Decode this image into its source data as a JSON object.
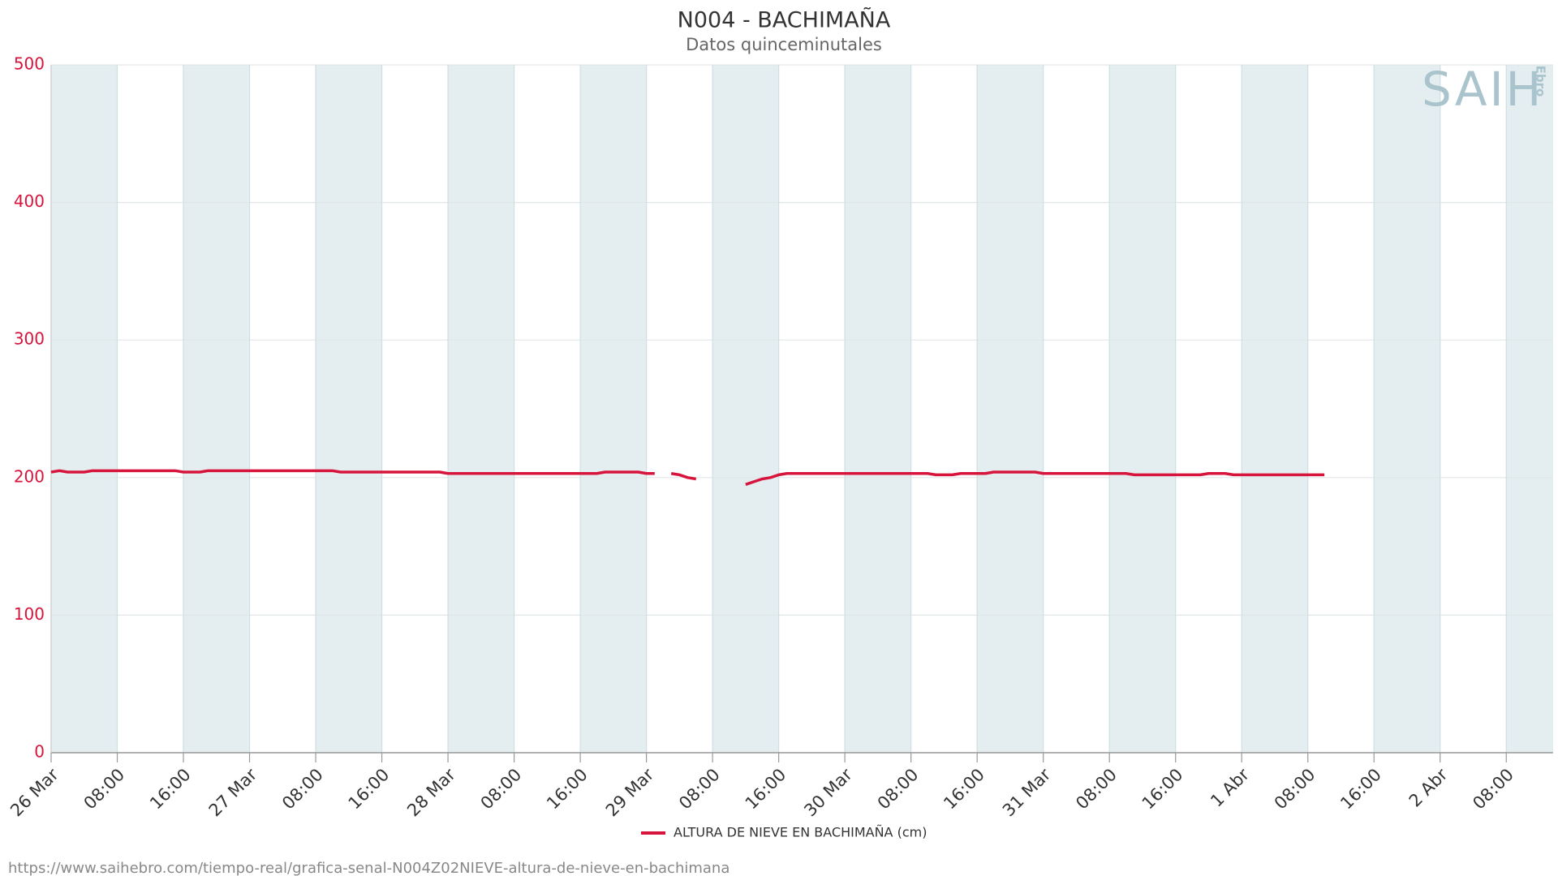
{
  "chart_data": {
    "type": "line",
    "title": "N004 - BACHIMAÑA",
    "subtitle": "Datos quinceminutales",
    "logo": "SAIH",
    "logo_sub": "Ebro",
    "source_url": "https://www.saihebro.com/tiempo-real/grafica-senal-N004Z02NIEVE-altura-de-nieve-en-bachimana",
    "x": [
      "26 Mar 00:00",
      "26 Mar 01:00",
      "26 Mar 02:00",
      "26 Mar 04:00",
      "26 Mar 05:00",
      "26 Mar 15:00",
      "26 Mar 16:00",
      "26 Mar 18:00",
      "26 Mar 19:00",
      "27 Mar 10:00",
      "27 Mar 11:00",
      "27 Mar 23:00",
      "28 Mar 00:00",
      "28 Mar 18:00",
      "28 Mar 19:00",
      "28 Mar 23:00",
      "29 Mar 00:00",
      "29 Mar 01:00",
      "29 Mar 02:00",
      "29 Mar 03:00",
      "29 Mar 04:00",
      "29 Mar 05:00",
      "29 Mar 06:00",
      "29 Mar 09:00",
      "29 Mar 12:00",
      "29 Mar 13:00",
      "29 Mar 14:00",
      "29 Mar 15:00",
      "29 Mar 16:00",
      "29 Mar 17:00",
      "30 Mar 10:00",
      "30 Mar 11:00",
      "30 Mar 13:00",
      "30 Mar 14:00",
      "30 Mar 17:00",
      "30 Mar 18:00",
      "30 Mar 23:00",
      "31 Mar 00:00",
      "31 Mar 10:00",
      "31 Mar 11:00",
      "31 Mar 19:00",
      "31 Mar 20:00",
      "31 Mar 22:00",
      "31 Mar 23:00",
      "1 Abr 10:00"
    ],
    "series": [
      {
        "name": "ALTURA DE NIEVE EN BACHIMAÑA (cm)",
        "color": "#d7143c",
        "values": [
          204,
          205,
          204,
          204,
          205,
          205,
          204,
          204,
          205,
          205,
          204,
          204,
          203,
          203,
          204,
          204,
          203,
          203,
          null,
          203,
          202,
          200,
          199,
          null,
          195,
          197,
          199,
          200,
          202,
          203,
          203,
          202,
          202,
          203,
          203,
          204,
          204,
          203,
          203,
          202,
          202,
          203,
          203,
          202,
          202
        ]
      }
    ],
    "xlim": [
      "26 Mar 00:00",
      "2 Abr 13:40"
    ],
    "xticks": [
      {
        "value": "26 Mar 00:00",
        "label": "26 Mar"
      },
      {
        "value": "26 Mar 08:00",
        "label": "08:00"
      },
      {
        "value": "26 Mar 16:00",
        "label": "16:00"
      },
      {
        "value": "27 Mar 00:00",
        "label": "27 Mar"
      },
      {
        "value": "27 Mar 08:00",
        "label": "08:00"
      },
      {
        "value": "27 Mar 16:00",
        "label": "16:00"
      },
      {
        "value": "28 Mar 00:00",
        "label": "28 Mar"
      },
      {
        "value": "28 Mar 08:00",
        "label": "08:00"
      },
      {
        "value": "28 Mar 16:00",
        "label": "16:00"
      },
      {
        "value": "29 Mar 00:00",
        "label": "29 Mar"
      },
      {
        "value": "29 Mar 08:00",
        "label": "08:00"
      },
      {
        "value": "29 Mar 16:00",
        "label": "16:00"
      },
      {
        "value": "30 Mar 00:00",
        "label": "30 Mar"
      },
      {
        "value": "30 Mar 08:00",
        "label": "08:00"
      },
      {
        "value": "30 Mar 16:00",
        "label": "16:00"
      },
      {
        "value": "31 Mar 00:00",
        "label": "31 Mar"
      },
      {
        "value": "31 Mar 08:00",
        "label": "08:00"
      },
      {
        "value": "31 Mar 16:00",
        "label": "16:00"
      },
      {
        "value": "1 Abr 00:00",
        "label": "1 Abr"
      },
      {
        "value": "1 Abr 08:00",
        "label": "08:00"
      },
      {
        "value": "1 Abr 16:00",
        "label": "16:00"
      },
      {
        "value": "2 Abr 00:00",
        "label": "2 Abr"
      },
      {
        "value": "2 Abr 08:00",
        "label": "08:00"
      }
    ],
    "ylim": [
      0,
      500
    ],
    "yticks": [
      0,
      100,
      200,
      300,
      400,
      500
    ],
    "grid": true,
    "band_color": "#e4eef1",
    "axis_label_color": "#d7143c",
    "legend": "bottom"
  }
}
